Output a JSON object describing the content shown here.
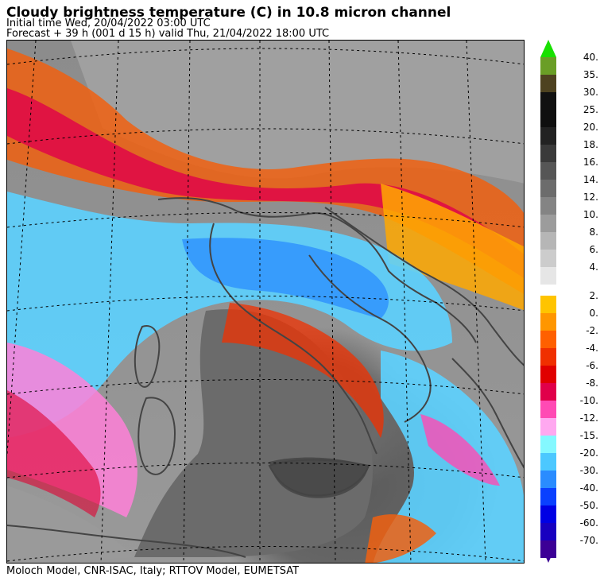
{
  "header": {
    "title": "Cloudy brightness temperature (C) in   10.8 micron channel",
    "initial_time": "Initial time  Wed, 20/04/2022  03:00 UTC",
    "forecast": "Forecast  +  39 h  (001 d 15 h)  valid Thu, 21/04/2022 18:00 UTC"
  },
  "footer": {
    "credits": "Moloch Model, CNR-ISAC, Italy; RTTOV Model, EUMETSAT"
  },
  "colorbar": {
    "units": "C",
    "levels": [
      {
        "label": "40.",
        "color": "#6a9e26"
      },
      {
        "label": "35.",
        "color": "#4e4220"
      },
      {
        "label": "30.",
        "color": "#111111"
      },
      {
        "label": "25.",
        "color": "#0f0f0f"
      },
      {
        "label": "20.",
        "color": "#222222"
      },
      {
        "label": "18.",
        "color": "#3a3a3a"
      },
      {
        "label": "16.",
        "color": "#565656"
      },
      {
        "label": "14.",
        "color": "#6c6c6c"
      },
      {
        "label": "12.",
        "color": "#848484"
      },
      {
        "label": "10.",
        "color": "#9c9c9c"
      },
      {
        "label": "8.",
        "color": "#b6b6b6"
      },
      {
        "label": "6.",
        "color": "#cccccc"
      },
      {
        "label": "4.",
        "color": "#e6e6e6"
      },
      {
        "label": "2.",
        "color": "#ffc400"
      },
      {
        "label": "0.",
        "color": "#ff9600"
      },
      {
        "label": "-2.",
        "color": "#ff6000"
      },
      {
        "label": "-4.",
        "color": "#f03000"
      },
      {
        "label": "-6.",
        "color": "#e00000"
      },
      {
        "label": "-8.",
        "color": "#e0004a"
      },
      {
        "label": "-10.",
        "color": "#ff4ab4"
      },
      {
        "label": "-12.",
        "color": "#ffa8f0"
      },
      {
        "label": "-15.",
        "color": "#84f8ff"
      },
      {
        "label": "-20.",
        "color": "#4cc8ff"
      },
      {
        "label": "-30.",
        "color": "#2a8cff"
      },
      {
        "label": "-40.",
        "color": "#0a40ff"
      },
      {
        "label": "-50.",
        "color": "#0000e4"
      },
      {
        "label": "-60.",
        "color": "#1800c0"
      },
      {
        "label": "-70.",
        "color": "#3c0096"
      }
    ],
    "top_arrow_color": "#18e000",
    "bottom_arrow_color": "#3c0096"
  }
}
